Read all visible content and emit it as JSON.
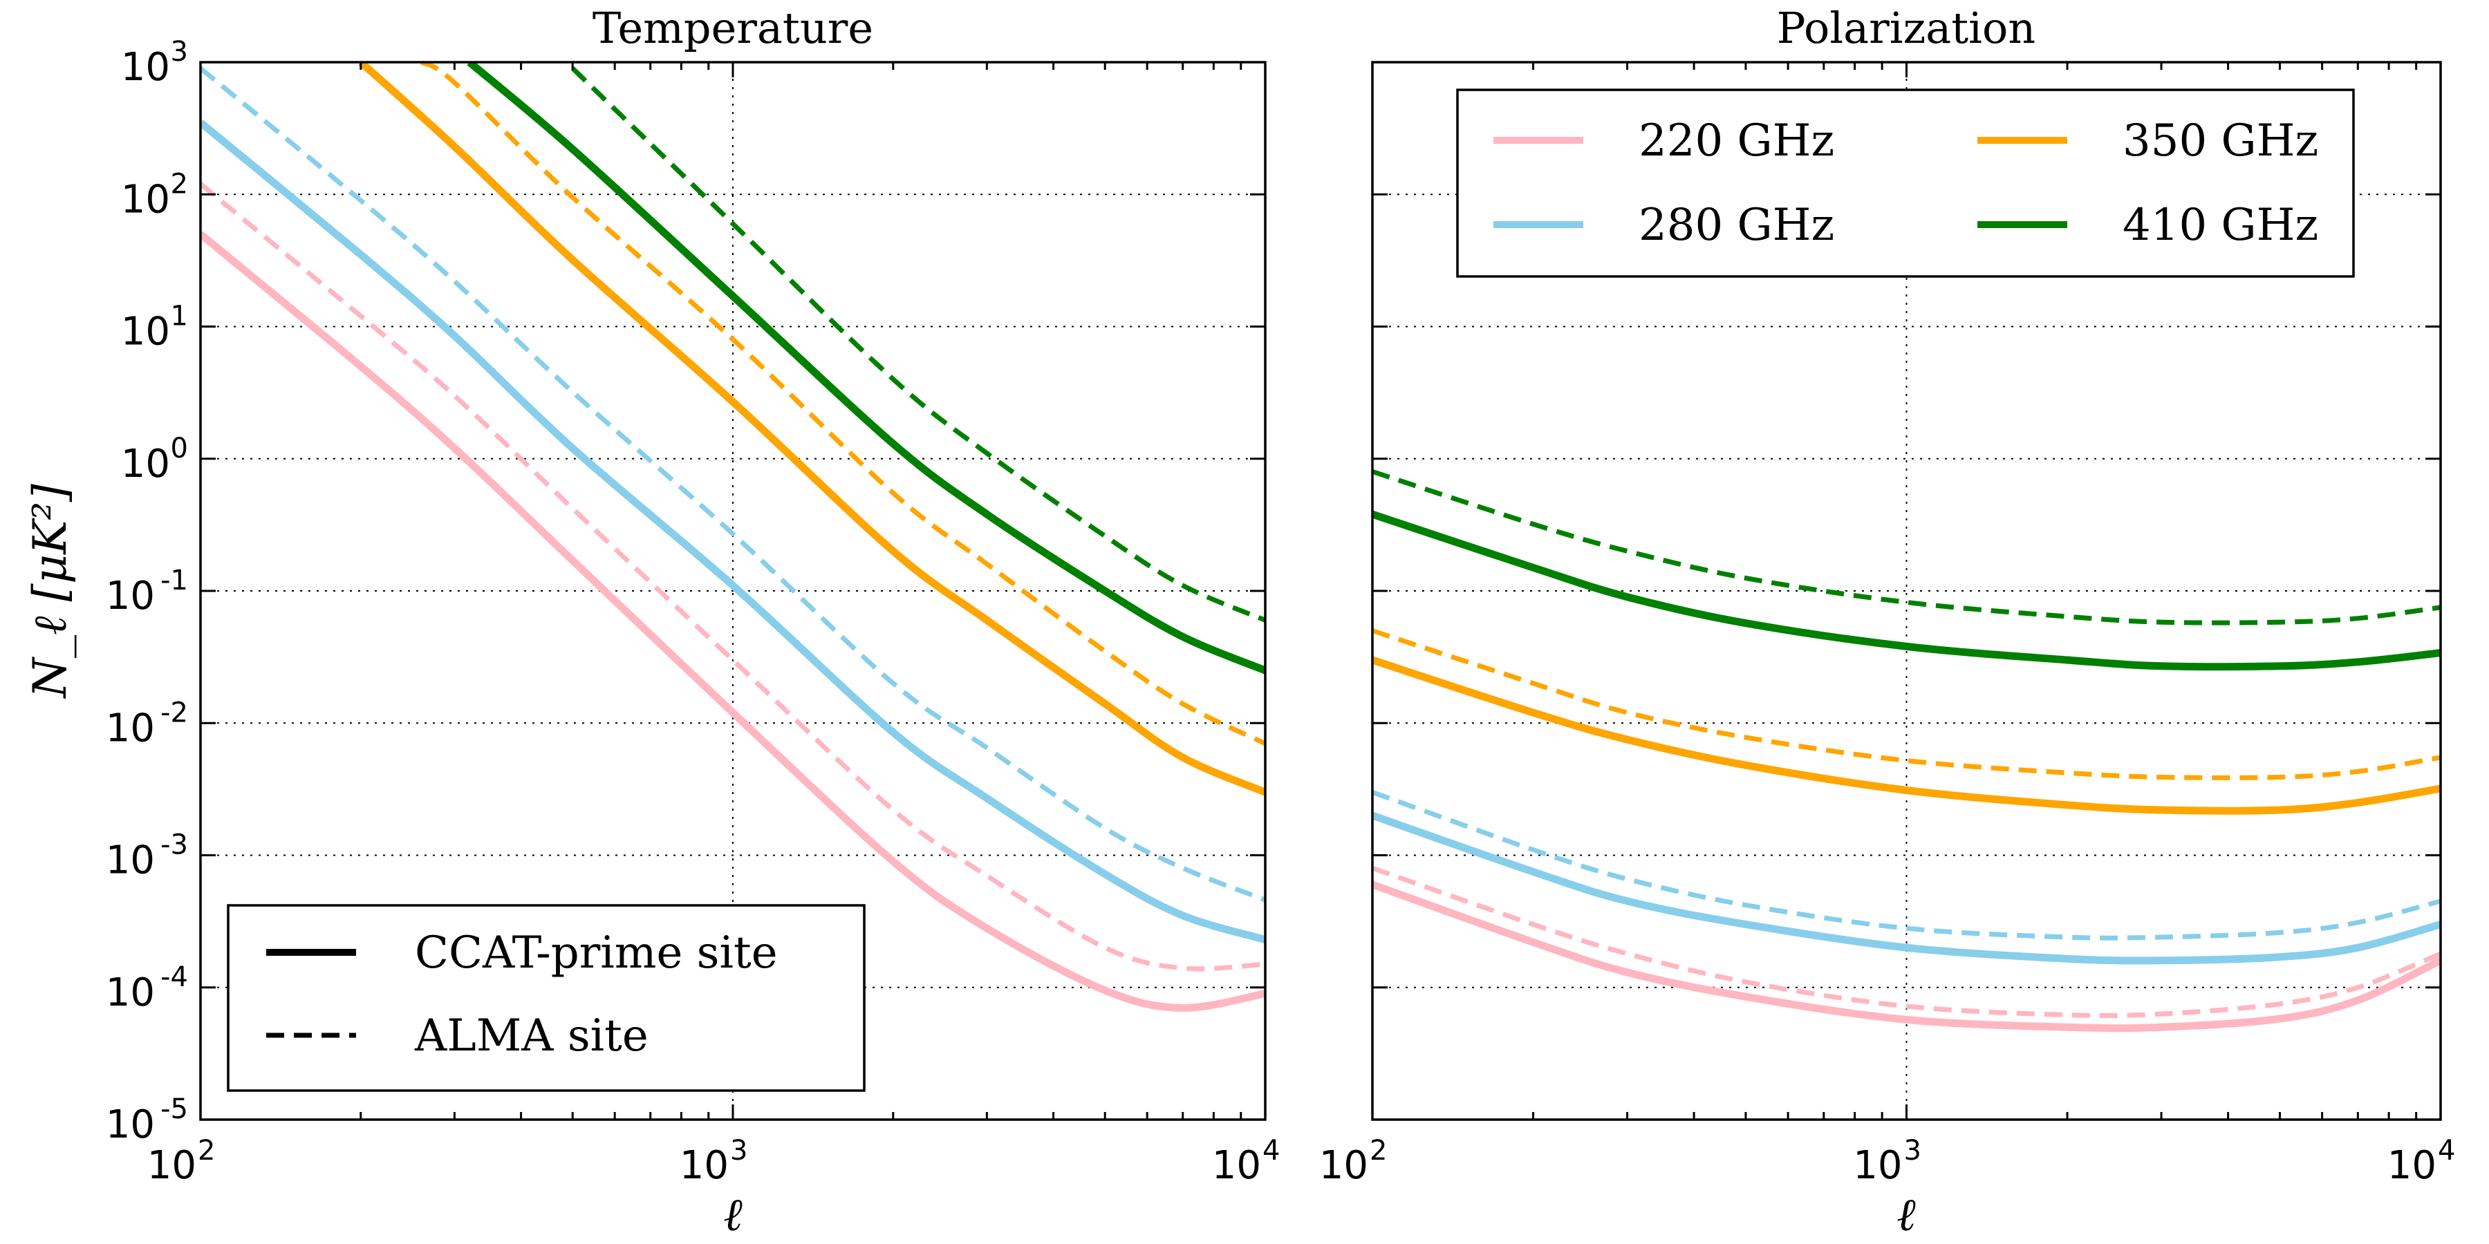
{
  "chart_data": {
    "type": "line",
    "scale": {
      "x": "log",
      "y": "log"
    },
    "xlim": [
      100,
      10000
    ],
    "ylim": [
      1e-05,
      1000
    ],
    "xlabel": "ℓ",
    "ylabel": "N_ℓ [μK²]",
    "x_ticks": [
      {
        "base": "10",
        "exp": "2",
        "value": 100
      },
      {
        "base": "10",
        "exp": "3",
        "value": 1000
      },
      {
        "base": "10",
        "exp": "4",
        "value": 10000
      }
    ],
    "y_ticks": [
      {
        "base": "10",
        "exp": "3",
        "value": 1000
      },
      {
        "base": "10",
        "exp": "2",
        "value": 100
      },
      {
        "base": "10",
        "exp": "1",
        "value": 10
      },
      {
        "base": "10",
        "exp": "0",
        "value": 1
      },
      {
        "base": "10",
        "exp": "-1",
        "value": 0.1
      },
      {
        "base": "10",
        "exp": "-2",
        "value": 0.01
      },
      {
        "base": "10",
        "exp": "-3",
        "value": 0.001
      },
      {
        "base": "10",
        "exp": "-4",
        "value": 0.0001
      },
      {
        "base": "10",
        "exp": "-5",
        "value": 1e-05
      }
    ],
    "colors": {
      "220 GHz": "#ffb6c1",
      "280 GHz": "#87ceeb",
      "350 GHz": "#ffa500",
      "410 GHz": "#008000"
    },
    "linestyles": {
      "CCAT-prime site": "solid",
      "ALMA site": "dashed"
    },
    "legend_frequency": {
      "position": "top",
      "entries": [
        "220 GHz",
        "280 GHz",
        "350 GHz",
        "410 GHz"
      ]
    },
    "legend_site": {
      "position": "bottom-left",
      "entries": [
        {
          "label": "CCAT-prime site",
          "style": "solid"
        },
        {
          "label": "ALMA site",
          "style": "dashed"
        }
      ]
    },
    "panels": [
      {
        "title": "Temperature",
        "series": [
          {
            "name": "220 GHz",
            "site": "CCAT-prime site",
            "x": [
              100,
              200,
              300,
              500,
              1000,
              2000,
              3000,
              5000,
              7000,
              10000
            ],
            "y": [
              50,
              5,
              1.2,
              0.17,
              0.012,
              0.0009,
              0.00028,
              9.5e-05,
              7e-05,
              9e-05
            ]
          },
          {
            "name": "220 GHz",
            "site": "ALMA site",
            "x": [
              100,
              200,
              300,
              500,
              1000,
              2000,
              3000,
              5000,
              7000,
              10000
            ],
            "y": [
              120,
              12,
              3,
              0.42,
              0.03,
              0.0022,
              0.0007,
              0.0002,
              0.00014,
              0.00015
            ]
          },
          {
            "name": "280 GHz",
            "site": "CCAT-prime site",
            "x": [
              100,
              200,
              300,
              500,
              1000,
              2000,
              3000,
              5000,
              7000,
              10000
            ],
            "y": [
              350,
              35,
              8.5,
              1.2,
              0.11,
              0.0085,
              0.0027,
              0.00072,
              0.00035,
              0.00023
            ]
          },
          {
            "name": "280 GHz",
            "site": "ALMA site",
            "x": [
              100,
              200,
              300,
              500,
              1000,
              2000,
              3000,
              5000,
              7000,
              10000
            ],
            "y": [
              900,
              90,
              22,
              3.2,
              0.27,
              0.02,
              0.0065,
              0.0016,
              0.0008,
              0.00046
            ]
          },
          {
            "name": "350 GHz",
            "site": "CCAT-prime site",
            "x": [
              200,
              300,
              500,
              1000,
              2000,
              3000,
              5000,
              7000,
              10000
            ],
            "y": [
              1000,
              230,
              32,
              2.7,
              0.2,
              0.06,
              0.014,
              0.0055,
              0.003
            ]
          },
          {
            "name": "350 GHz",
            "site": "ALMA site",
            "x": [
              260,
              300,
              500,
              1000,
              2000,
              3000,
              5000,
              7000,
              10000
            ],
            "y": [
              1000,
              700,
              95,
              8,
              0.55,
              0.16,
              0.035,
              0.014,
              0.007
            ]
          },
          {
            "name": "410 GHz",
            "site": "CCAT-prime site",
            "x": [
              320,
              500,
              1000,
              2000,
              3000,
              5000,
              7000,
              10000
            ],
            "y": [
              1000,
              220,
              17,
              1.3,
              0.38,
              0.1,
              0.045,
              0.025
            ]
          },
          {
            "name": "410 GHz",
            "site": "ALMA site",
            "x": [
              500,
              1000,
              2000,
              3000,
              5000,
              7000,
              10000
            ],
            "y": [
              900,
              60,
              4,
              1.1,
              0.26,
              0.11,
              0.06
            ]
          }
        ]
      },
      {
        "title": "Polarization",
        "series": [
          {
            "name": "220 GHz",
            "site": "CCAT-prime site",
            "x": [
              100,
              200,
              300,
              500,
              1000,
              2000,
              3000,
              5000,
              7000,
              10000
            ],
            "y": [
              0.0006,
              0.00022,
              0.00013,
              8.5e-05,
              5.7e-05,
              5e-05,
              5e-05,
              5.8e-05,
              8e-05,
              0.00016
            ]
          },
          {
            "name": "220 GHz",
            "site": "ALMA site",
            "x": [
              100,
              200,
              300,
              500,
              1000,
              2000,
              3000,
              5000,
              7000,
              10000
            ],
            "y": [
              0.0008,
              0.0003,
              0.00018,
              0.00011,
              7.2e-05,
              6.2e-05,
              6.3e-05,
              7.5e-05,
              0.0001,
              0.00018
            ]
          },
          {
            "name": "280 GHz",
            "site": "CCAT-prime site",
            "x": [
              100,
              200,
              300,
              500,
              1000,
              2000,
              3000,
              5000,
              7000,
              10000
            ],
            "y": [
              0.002,
              0.00075,
              0.00045,
              0.0003,
              0.0002,
              0.000165,
              0.00016,
              0.00017,
              0.0002,
              0.0003
            ]
          },
          {
            "name": "280 GHz",
            "site": "ALMA site",
            "x": [
              100,
              200,
              300,
              500,
              1000,
              2000,
              3000,
              5000,
              7000,
              10000
            ],
            "y": [
              0.003,
              0.0011,
              0.00066,
              0.00042,
              0.00028,
              0.00024,
              0.00024,
              0.00026,
              0.00031,
              0.00045
            ]
          },
          {
            "name": "350 GHz",
            "site": "CCAT-prime site",
            "x": [
              100,
              200,
              300,
              500,
              1000,
              2000,
              3000,
              5000,
              7000,
              10000
            ],
            "y": [
              0.03,
              0.012,
              0.0075,
              0.0048,
              0.0031,
              0.0024,
              0.0022,
              0.0022,
              0.0025,
              0.0032
            ]
          },
          {
            "name": "350 GHz",
            "site": "ALMA site",
            "x": [
              100,
              200,
              300,
              500,
              1000,
              2000,
              3000,
              5000,
              7000,
              10000
            ],
            "y": [
              0.05,
              0.02,
              0.012,
              0.0078,
              0.0052,
              0.0042,
              0.0039,
              0.0039,
              0.0043,
              0.0055
            ]
          },
          {
            "name": "410 GHz",
            "site": "CCAT-prime site",
            "x": [
              100,
              200,
              300,
              500,
              1000,
              2000,
              3000,
              5000,
              7000,
              10000
            ],
            "y": [
              0.38,
              0.15,
              0.09,
              0.057,
              0.038,
              0.03,
              0.027,
              0.027,
              0.029,
              0.034
            ]
          },
          {
            "name": "410 GHz",
            "site": "ALMA site",
            "x": [
              100,
              200,
              300,
              500,
              1000,
              2000,
              3000,
              5000,
              7000,
              10000
            ],
            "y": [
              0.8,
              0.32,
              0.2,
              0.125,
              0.082,
              0.064,
              0.058,
              0.058,
              0.062,
              0.075
            ]
          }
        ]
      }
    ]
  }
}
